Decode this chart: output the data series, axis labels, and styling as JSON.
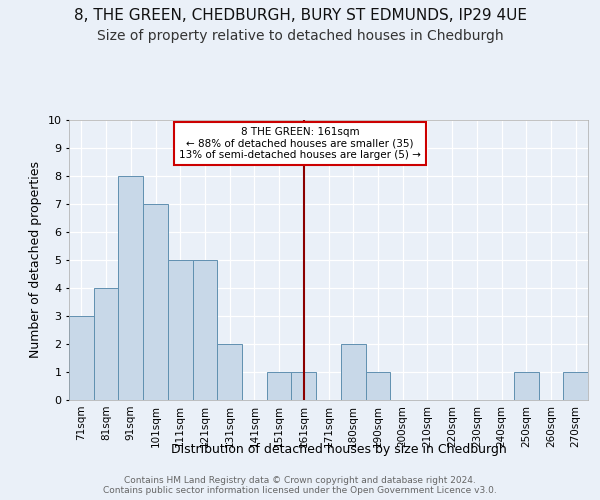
{
  "title1": "8, THE GREEN, CHEDBURGH, BURY ST EDMUNDS, IP29 4UE",
  "title2": "Size of property relative to detached houses in Chedburgh",
  "xlabel": "Distribution of detached houses by size in Chedburgh",
  "ylabel": "Number of detached properties",
  "footnote": "Contains HM Land Registry data © Crown copyright and database right 2024.\nContains public sector information licensed under the Open Government Licence v3.0.",
  "bin_labels": [
    "71sqm",
    "81sqm",
    "91sqm",
    "101sqm",
    "111sqm",
    "121sqm",
    "131sqm",
    "141sqm",
    "151sqm",
    "161sqm",
    "171sqm",
    "180sqm",
    "190sqm",
    "200sqm",
    "210sqm",
    "220sqm",
    "230sqm",
    "240sqm",
    "250sqm",
    "260sqm",
    "270sqm"
  ],
  "bar_values": [
    3,
    4,
    8,
    7,
    5,
    5,
    2,
    0,
    1,
    1,
    0,
    2,
    1,
    0,
    0,
    0,
    0,
    0,
    1,
    0,
    1
  ],
  "bar_color": "#c8d8e8",
  "bar_edge_color": "#6090b0",
  "marker_label": "8 THE GREEN: 161sqm",
  "annotation_line1": "← 88% of detached houses are smaller (35)",
  "annotation_line2": "13% of semi-detached houses are larger (5) →",
  "annotation_box_color": "#ffffff",
  "annotation_box_edge": "#cc0000",
  "vline_color": "#8b0000",
  "marker_bin_index": 9,
  "ylim": [
    0,
    10
  ],
  "yticks": [
    0,
    1,
    2,
    3,
    4,
    5,
    6,
    7,
    8,
    9,
    10
  ],
  "bg_color": "#eaf0f8",
  "plot_bg_color": "#eaf0f8",
  "grid_color": "#ffffff",
  "title1_fontsize": 11,
  "title2_fontsize": 10,
  "xlabel_fontsize": 9,
  "ylabel_fontsize": 9,
  "tick_fontsize": 7.5,
  "footnote_fontsize": 6.5
}
